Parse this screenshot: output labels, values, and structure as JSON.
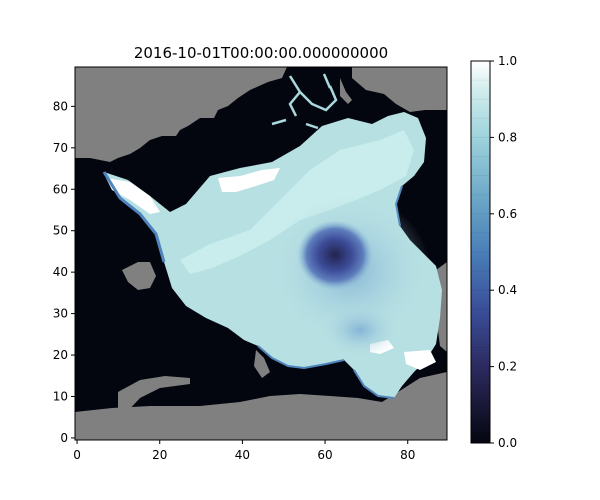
{
  "chart_data": {
    "type": "heatmap",
    "title": "2016-10-01T00:00:00.000000000",
    "xlabel": "",
    "ylabel": "",
    "xlim": [
      -0.5,
      89.5
    ],
    "ylim": [
      -0.5,
      89.5
    ],
    "x_ticks": [
      0,
      20,
      40,
      60,
      80
    ],
    "y_ticks": [
      0,
      10,
      20,
      30,
      40,
      50,
      60,
      70,
      80
    ],
    "colorbar": {
      "range": [
        0.0,
        1.0
      ],
      "ticks": [
        "0.0",
        "0.2",
        "0.4",
        "0.6",
        "0.8",
        "1.0"
      ],
      "levels": 20,
      "colormap": [
        "#04060f",
        "#2a2a5c",
        "#3a4f9a",
        "#4a7fb8",
        "#74b2c9",
        "#a9d9de",
        "#ffffff"
      ]
    },
    "land_color": "#808080",
    "ocean_color": "#04060f",
    "field_description": "Sea ice concentration map on a 90x90 grid; high concentration (0.8-1.0) pack ice covering the central Arctic, a low-concentration depression (~0.3) near x=62, y=45, grey cells are land.",
    "low_center": {
      "x": 62,
      "y": 44,
      "value": 0.3
    }
  }
}
